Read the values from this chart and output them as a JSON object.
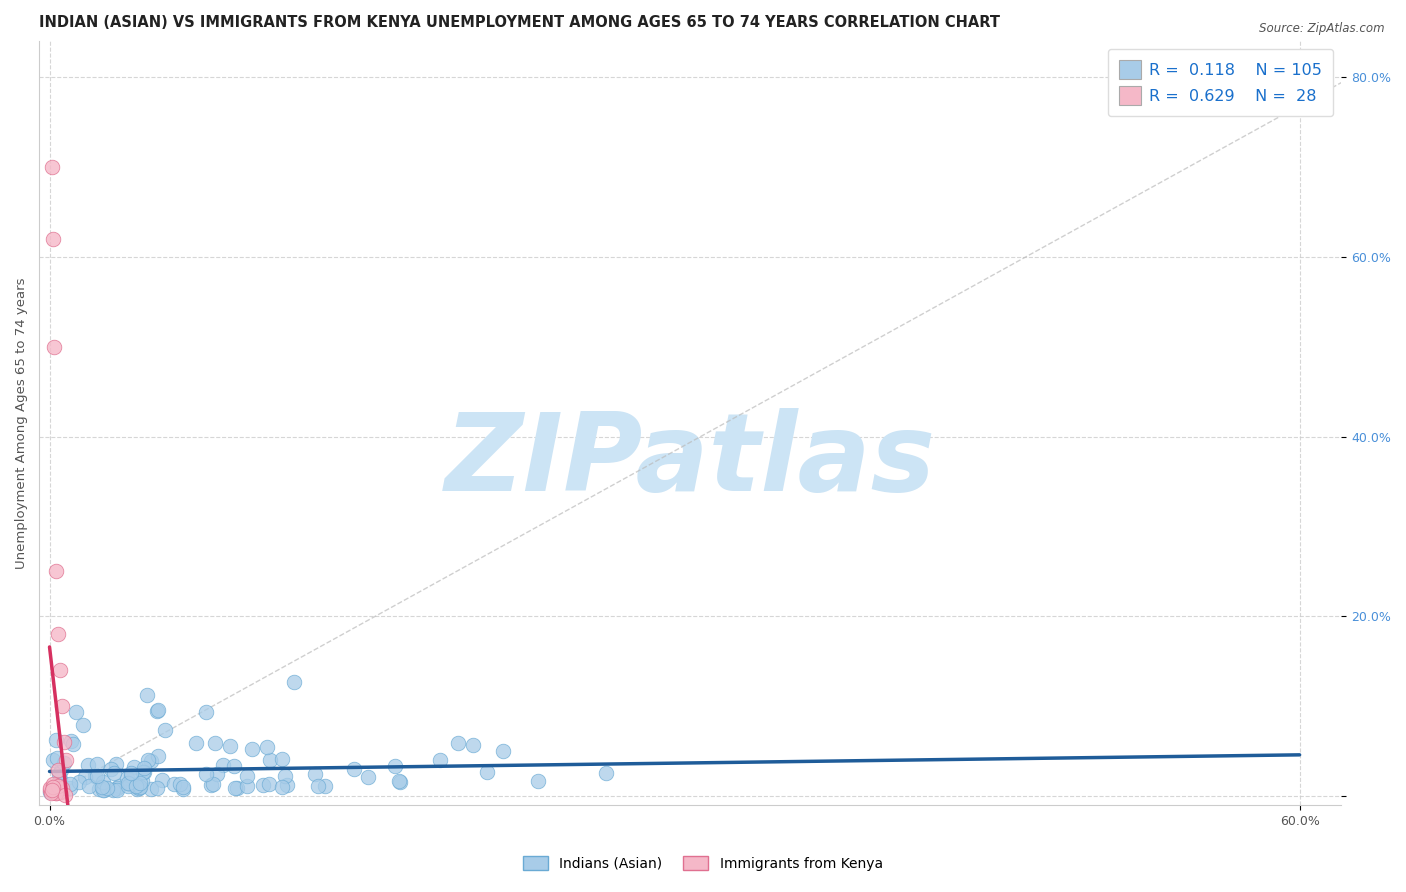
{
  "title": "INDIAN (ASIAN) VS IMMIGRANTS FROM KENYA UNEMPLOYMENT AMONG AGES 65 TO 74 YEARS CORRELATION CHART",
  "source": "Source: ZipAtlas.com",
  "ylabel": "Unemployment Among Ages 65 to 74 years",
  "xlim": [
    -0.005,
    0.62
  ],
  "ylim": [
    -0.01,
    0.84
  ],
  "x_left_label": "0.0%",
  "x_right_label": "60.0%",
  "ytick_positions": [
    0.0,
    0.2,
    0.4,
    0.6,
    0.8
  ],
  "ytick_labels": [
    "",
    "20.0%",
    "40.0%",
    "60.0%",
    "80.0%"
  ],
  "series_indian": {
    "name": "Indians (Asian)",
    "R": 0.118,
    "N": 105,
    "color": "#a8cce8",
    "edge_color": "#6aaad4",
    "line_color": "#1f5c99"
  },
  "series_kenya": {
    "name": "Immigrants from Kenya",
    "R": 0.629,
    "N": 28,
    "color": "#f5b8c8",
    "edge_color": "#e07090",
    "line_color": "#d63060"
  },
  "watermark": "ZIPatlas",
  "watermark_color": "#cce4f5",
  "background_color": "#ffffff",
  "grid_color": "#cccccc",
  "title_fontsize": 10.5,
  "axis_label_fontsize": 9.5,
  "tick_fontsize": 9,
  "legend_text_color": "#1a70cc",
  "legend_N_color": "#cc2222",
  "ref_line_color": "#bbbbbb"
}
